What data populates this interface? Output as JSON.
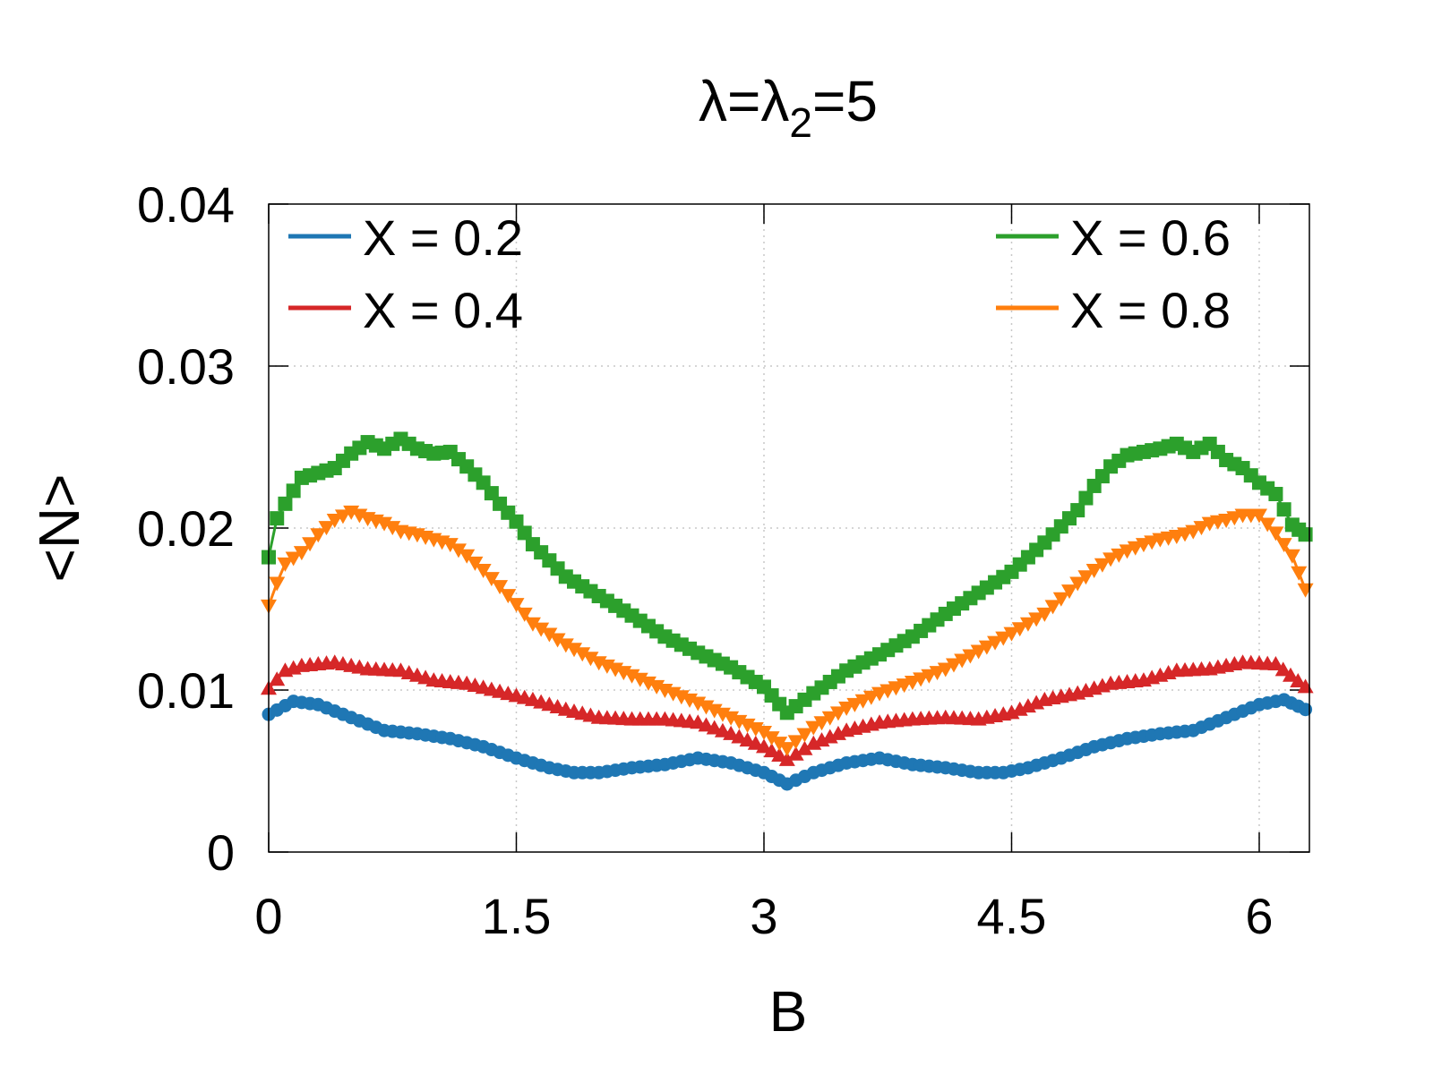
{
  "chart_data": {
    "type": "line",
    "title": {
      "main": "λ=λ",
      "sub": "2",
      "suffix": "=5"
    },
    "xlabel": "B",
    "ylabel": "<N>",
    "xlim": [
      0,
      6.3
    ],
    "ylim": [
      0,
      0.04
    ],
    "xticks": [
      0,
      1.5,
      3,
      4.5,
      6
    ],
    "xtick_labels": [
      "0",
      "1.5",
      "3",
      "4.5",
      "6"
    ],
    "yticks": [
      0,
      0.01,
      0.02,
      0.03,
      0.04
    ],
    "ytick_labels": [
      "0",
      "0.01",
      "0.02",
      "0.03",
      "0.04"
    ],
    "grid": true,
    "legend_position": "top, two columns (left and right)",
    "series": [
      {
        "name": "X = 0.2",
        "color": "#1f77b4",
        "marker": "circle",
        "x": [
          0,
          0.15,
          0.3,
          0.5,
          0.7,
          0.9,
          1.1,
          1.3,
          1.5,
          1.7,
          1.85,
          2.0,
          2.2,
          2.4,
          2.6,
          2.8,
          3.0,
          3.14,
          3.3,
          3.5,
          3.7,
          3.9,
          4.1,
          4.3,
          4.45,
          4.6,
          4.8,
          5.0,
          5.2,
          5.4,
          5.6,
          5.8,
          6.0,
          6.15,
          6.28
        ],
        "values": [
          0.0085,
          0.0093,
          0.0091,
          0.0083,
          0.0075,
          0.0073,
          0.007,
          0.0065,
          0.0058,
          0.0052,
          0.0049,
          0.0049,
          0.0052,
          0.0054,
          0.0058,
          0.0055,
          0.0049,
          0.0042,
          0.0049,
          0.0055,
          0.0058,
          0.0054,
          0.0052,
          0.0049,
          0.0049,
          0.0052,
          0.0058,
          0.0065,
          0.007,
          0.0073,
          0.0075,
          0.0083,
          0.0091,
          0.0094,
          0.0088
        ]
      },
      {
        "name": "X = 0.4",
        "color": "#d62728",
        "marker": "triangle-up",
        "x": [
          0,
          0.1,
          0.2,
          0.4,
          0.6,
          0.8,
          1.0,
          1.2,
          1.4,
          1.6,
          1.8,
          2.0,
          2.2,
          2.4,
          2.6,
          2.8,
          3.0,
          3.14,
          3.3,
          3.5,
          3.7,
          3.9,
          4.1,
          4.3,
          4.5,
          4.7,
          4.9,
          5.1,
          5.3,
          5.5,
          5.7,
          5.9,
          6.1,
          6.28
        ],
        "values": [
          0.0101,
          0.0112,
          0.0115,
          0.0117,
          0.0113,
          0.0112,
          0.0106,
          0.0104,
          0.0099,
          0.0094,
          0.0088,
          0.0083,
          0.0082,
          0.0082,
          0.008,
          0.0073,
          0.0065,
          0.0057,
          0.0067,
          0.0075,
          0.008,
          0.0082,
          0.0083,
          0.0082,
          0.0086,
          0.0094,
          0.0098,
          0.0104,
          0.0106,
          0.0112,
          0.0113,
          0.0117,
          0.0116,
          0.0102
        ]
      },
      {
        "name": "X = 0.6",
        "color": "#2ca02c",
        "marker": "square",
        "x": [
          0,
          0.05,
          0.1,
          0.2,
          0.3,
          0.4,
          0.5,
          0.6,
          0.7,
          0.8,
          0.9,
          1.0,
          1.1,
          1.2,
          1.3,
          1.4,
          1.5,
          1.6,
          1.8,
          2.0,
          2.2,
          2.4,
          2.6,
          2.8,
          3.0,
          3.14,
          3.3,
          3.5,
          3.7,
          3.9,
          4.1,
          4.3,
          4.5,
          4.7,
          4.9,
          5.0,
          5.1,
          5.2,
          5.3,
          5.4,
          5.5,
          5.6,
          5.7,
          5.8,
          5.9,
          6.0,
          6.1,
          6.2,
          6.28
        ],
        "values": [
          0.0182,
          0.0206,
          0.0215,
          0.0231,
          0.0234,
          0.0237,
          0.0246,
          0.0253,
          0.0249,
          0.0255,
          0.0249,
          0.0246,
          0.0247,
          0.0238,
          0.0228,
          0.0215,
          0.0204,
          0.019,
          0.017,
          0.0158,
          0.0146,
          0.0133,
          0.0123,
          0.0114,
          0.0102,
          0.0086,
          0.0098,
          0.0112,
          0.0122,
          0.0133,
          0.0147,
          0.016,
          0.0173,
          0.0191,
          0.0211,
          0.0226,
          0.0238,
          0.0245,
          0.0247,
          0.0249,
          0.0252,
          0.0247,
          0.0252,
          0.0242,
          0.0237,
          0.0228,
          0.0221,
          0.0202,
          0.0196
        ]
      },
      {
        "name": "X = 0.8",
        "color": "#ff7f0e",
        "marker": "triangle-down",
        "x": [
          0,
          0.05,
          0.1,
          0.2,
          0.3,
          0.4,
          0.5,
          0.6,
          0.7,
          0.8,
          0.9,
          1.0,
          1.1,
          1.2,
          1.3,
          1.4,
          1.5,
          1.6,
          1.8,
          2.0,
          2.2,
          2.4,
          2.6,
          2.8,
          3.0,
          3.14,
          3.3,
          3.5,
          3.7,
          3.9,
          4.1,
          4.3,
          4.5,
          4.7,
          4.9,
          5.0,
          5.1,
          5.2,
          5.3,
          5.4,
          5.5,
          5.6,
          5.7,
          5.8,
          5.9,
          6.0,
          6.1,
          6.2,
          6.28
        ],
        "values": [
          0.0152,
          0.0166,
          0.0178,
          0.0185,
          0.0196,
          0.0205,
          0.021,
          0.0206,
          0.0203,
          0.0198,
          0.0196,
          0.0193,
          0.019,
          0.0183,
          0.0174,
          0.0164,
          0.0153,
          0.0141,
          0.0128,
          0.0117,
          0.0109,
          0.01,
          0.0092,
          0.0083,
          0.0074,
          0.0064,
          0.0077,
          0.0089,
          0.0098,
          0.0105,
          0.0113,
          0.0124,
          0.0135,
          0.0147,
          0.0166,
          0.0174,
          0.0181,
          0.0186,
          0.019,
          0.0193,
          0.0195,
          0.0198,
          0.0203,
          0.0205,
          0.0208,
          0.0208,
          0.0197,
          0.0183,
          0.0162
        ]
      }
    ]
  }
}
